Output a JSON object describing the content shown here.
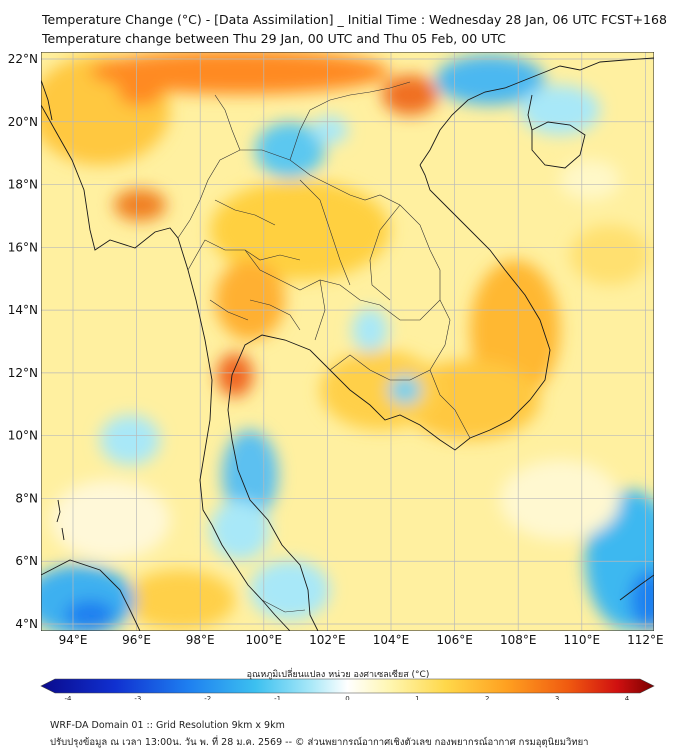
{
  "header": {
    "title_line1": "Temperature Change (°C) - [Data Assimilation] _ Initial Time : Wednesday 28 Jan, 06 UTC FCST+168",
    "title_line2": "Temperature change between Thu 29 Jan, 00 UTC and Thu 05 Feb, 00 UTC"
  },
  "map": {
    "lat_labels": [
      "22°N",
      "20°N",
      "18°N",
      "16°N",
      "14°N",
      "12°N",
      "10°N",
      "8°N",
      "6°N",
      "4°N"
    ],
    "lon_labels": [
      "94°E",
      "96°E",
      "98°E",
      "100°E",
      "102°E",
      "104°E",
      "106°E",
      "108°E",
      "110°E",
      "112°E"
    ]
  },
  "colorbar": {
    "title": "อุณหภูมิเปลี่ยนแปลง หน่วย องศาเซลเซียส (°C)",
    "ticks": [
      "-4",
      "-3",
      "-2",
      "-1",
      "0",
      "1",
      "2",
      "3",
      "4"
    ],
    "min": -4,
    "max": 4,
    "colors": [
      "#0a0a8c",
      "#1030d0",
      "#1e7ff0",
      "#3cc0f0",
      "#a8e8f8",
      "#ffffff",
      "#fff6b0",
      "#ffd84a",
      "#ffa020",
      "#f05a10",
      "#d01010",
      "#7a0000"
    ]
  },
  "footer": {
    "line1": "WRF-DA Domain 01 :: Grid Resolution 9km x 9km",
    "line2": "ปรับปรุงข้อมูล ณ เวลา 13:00น. วัน พ. ที่ 28 ม.ค. 2569 -- © ส่วนพยากรณ์อากาศเชิงตัวเลข กองพยากรณ์อากาศ กรมอุตุนิยมวิทยา"
  }
}
